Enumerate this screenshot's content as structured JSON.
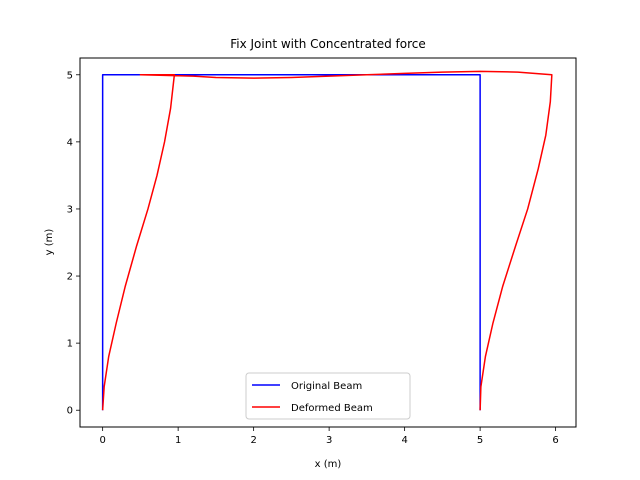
{
  "chart_data": {
    "type": "line",
    "title": "Fix Joint with Concentrated force",
    "xlabel": "x (m)",
    "ylabel": "y (m)",
    "xlim": [
      -0.3,
      6.27
    ],
    "ylim": [
      -0.25,
      5.25
    ],
    "xticks": [
      0,
      1,
      2,
      3,
      4,
      5,
      6
    ],
    "yticks": [
      0,
      1,
      2,
      3,
      4,
      5
    ],
    "grid": false,
    "legend_position": "lower center",
    "series": [
      {
        "name": "Original Beam",
        "color": "#0000ff",
        "x": [
          0,
          0,
          5,
          5
        ],
        "y": [
          0,
          5,
          5,
          0
        ]
      },
      {
        "name": "Deformed Beam",
        "color": "#ff0000",
        "x": [
          0,
          0.02,
          0.08,
          0.18,
          0.3,
          0.45,
          0.6,
          0.72,
          0.82,
          0.9,
          0.95,
          0.5,
          1.2,
          1.5,
          2.0,
          2.5,
          3.0,
          3.5,
          4.0,
          4.5,
          5.0,
          5.5,
          5.95,
          5.93,
          5.87,
          5.77,
          5.63,
          5.47,
          5.3,
          5.17,
          5.07,
          5.01,
          5.0
        ],
        "y": [
          0,
          0.35,
          0.8,
          1.3,
          1.85,
          2.45,
          3.0,
          3.5,
          4.0,
          4.5,
          5.0,
          5.0,
          4.98,
          4.96,
          4.95,
          4.96,
          4.98,
          5.0,
          5.02,
          5.04,
          5.05,
          5.04,
          5.0,
          4.6,
          4.1,
          3.6,
          3.0,
          2.45,
          1.85,
          1.3,
          0.8,
          0.35,
          0.0
        ]
      }
    ]
  }
}
